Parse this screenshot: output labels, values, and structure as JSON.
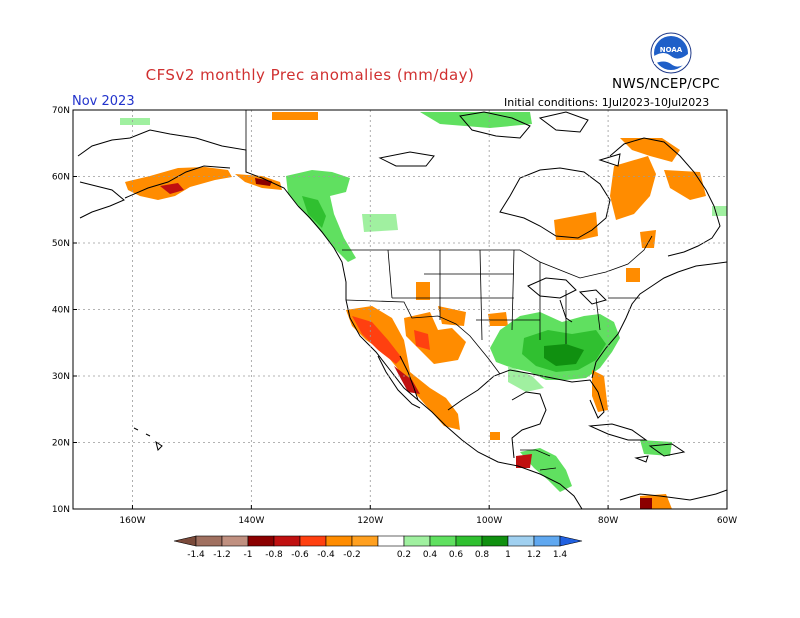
{
  "header": {
    "title": "CFSv2 monthly Prec anomalies (mm/day)",
    "agency": "NWS/NCEP/CPC",
    "month": "Nov 2023",
    "initial_conditions": "Initial conditions: 1Jul2023-10Jul2023",
    "logo_text": "NOAA"
  },
  "map": {
    "lon_range": [
      -170,
      -60
    ],
    "lat_range": [
      10,
      70
    ],
    "lat_labels": [
      "70N",
      "60N",
      "50N",
      "40N",
      "30N",
      "20N",
      "10N"
    ],
    "lat_values": [
      70,
      60,
      50,
      40,
      30,
      20,
      10
    ],
    "lon_labels": [
      "160W",
      "140W",
      "120W",
      "100W",
      "80W",
      "60W"
    ],
    "lon_values": [
      -160,
      -140,
      -120,
      -100,
      -80,
      -60
    ]
  },
  "colorbar": {
    "labels": [
      "-1.4",
      "-1.2",
      "-1",
      "-0.8",
      "-0.6",
      "-0.4",
      "-0.2",
      "0.2",
      "0.4",
      "0.6",
      "0.8",
      "1",
      "1.2",
      "1.4"
    ],
    "colors": [
      "#7a4a3a",
      "#a07060",
      "#c09080",
      "#8b0000",
      "#c01010",
      "#ff4010",
      "#ff8c00",
      "#ffa020",
      "#ffffff",
      "#a0f0a0",
      "#60e060",
      "#30c030",
      "#109010",
      "#a0d0f0",
      "#60a8f0",
      "#2060e0"
    ]
  }
}
